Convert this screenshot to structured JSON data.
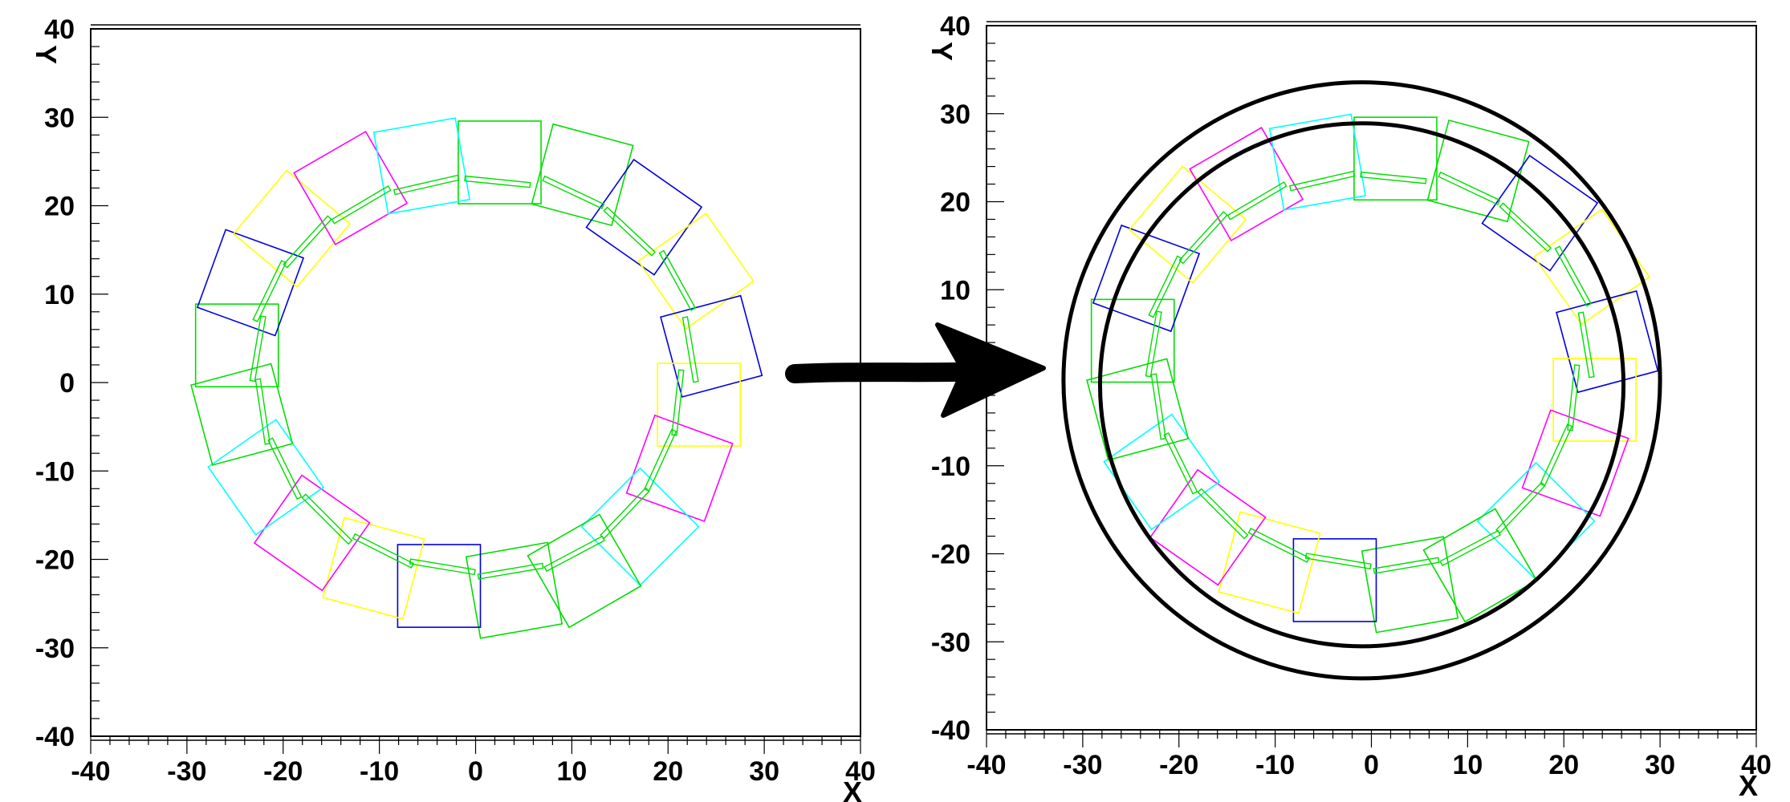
{
  "panels": [
    {
      "id": "left",
      "xlabel": "X",
      "ylabel": "Y",
      "xlim": [
        -40,
        40
      ],
      "ylim": [
        -40,
        40
      ],
      "x_ticks": [
        "-40",
        "-30",
        "-20",
        "-10",
        "0",
        "10",
        "20",
        "30",
        "40"
      ],
      "y_ticks": [
        "40",
        "30",
        "20",
        "10",
        "0",
        "-10",
        "-20",
        "-30",
        "-40"
      ],
      "circles": []
    },
    {
      "id": "right",
      "xlabel": "X",
      "ylabel": "Y",
      "xlim": [
        -40,
        40
      ],
      "ylim": [
        -40,
        40
      ],
      "x_ticks": [
        "-40",
        "-30",
        "-20",
        "-10",
        "0",
        "10",
        "20",
        "30",
        "40"
      ],
      "y_ticks": [
        "40",
        "30",
        "20",
        "10",
        "0",
        "-10",
        "-20",
        "-30",
        "-40"
      ],
      "circles": [
        {
          "cx": -1,
          "cy": -0.3,
          "r": 31
        },
        {
          "cx": -1,
          "cy": -0.8,
          "r": 27.2
        }
      ]
    }
  ],
  "modules": [
    {
      "color": "#00dd00",
      "x": 2.5,
      "y": 24.9,
      "angle": 0
    },
    {
      "color": "#00dd00",
      "x": 11.1,
      "y": 23.5,
      "angle": -15
    },
    {
      "color": "#0000dd",
      "x": 17.5,
      "y": 18.7,
      "angle": -35
    },
    {
      "color": "#ffff00",
      "x": 22.9,
      "y": 12.6,
      "angle": -55
    },
    {
      "color": "#0000dd",
      "x": 24.5,
      "y": 4.1,
      "angle": -75
    },
    {
      "color": "#ffff00",
      "x": 23.2,
      "y": -2.5,
      "angle": 90
    },
    {
      "color": "#ff00ff",
      "x": 21.2,
      "y": -9.7,
      "angle": 70
    },
    {
      "color": "#00ffff",
      "x": 17.1,
      "y": -16.3,
      "angle": 45
    },
    {
      "color": "#00dd00",
      "x": 11.3,
      "y": -21.3,
      "angle": 30
    },
    {
      "color": "#00dd00",
      "x": 4.0,
      "y": -23.5,
      "angle": 10
    },
    {
      "color": "#0000dd",
      "x": -3.8,
      "y": -23.0,
      "angle": 0
    },
    {
      "color": "#ffff00",
      "x": -10.6,
      "y": -21.0,
      "angle": -15
    },
    {
      "color": "#ff00ff",
      "x": -17.0,
      "y": -17.0,
      "angle": -35
    },
    {
      "color": "#00ffff",
      "x": -21.8,
      "y": -10.7,
      "angle": -55
    },
    {
      "color": "#00dd00",
      "x": -24.3,
      "y": -3.6,
      "angle": -75
    },
    {
      "color": "#00dd00",
      "x": -24.8,
      "y": 4.2,
      "angle": 90
    },
    {
      "color": "#0000dd",
      "x": -23.4,
      "y": 11.3,
      "angle": 70
    },
    {
      "color": "#ffff00",
      "x": -19.1,
      "y": 17.4,
      "angle": 50
    },
    {
      "color": "#ff00ff",
      "x": -13.0,
      "y": 22.0,
      "angle": 30
    },
    {
      "color": "#00ffff",
      "x": -5.6,
      "y": 24.5,
      "angle": 10
    }
  ],
  "arrow": {
    "color": "#000000"
  }
}
